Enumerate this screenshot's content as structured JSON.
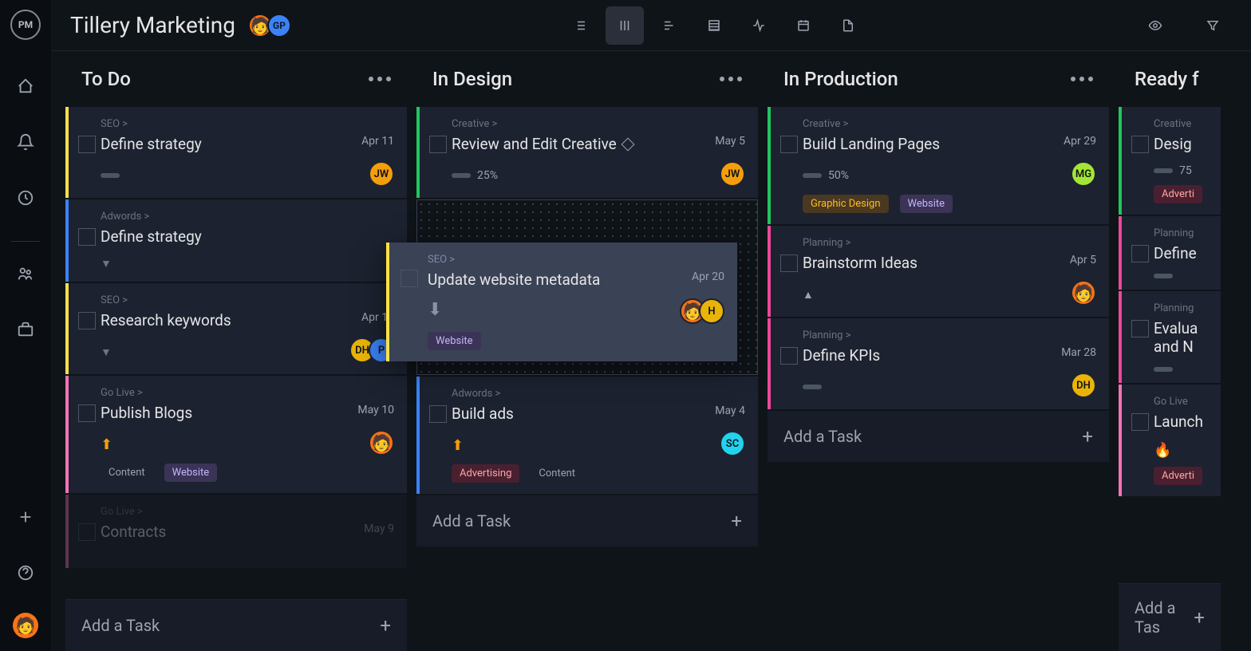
{
  "sidebar": {
    "logo": "PM"
  },
  "header": {
    "title": "Tillery Marketing",
    "avatars": [
      {
        "initials": "🧑",
        "bg": "#f97316",
        "emoji": true
      },
      {
        "initials": "GP",
        "bg": "#3b82f6"
      }
    ]
  },
  "columns": [
    {
      "title": "To Do",
      "addTask": "Add a Task",
      "addTaskBottom": true,
      "cards": [
        {
          "category": "SEO >",
          "title": "Define strategy",
          "date": "Apr 11",
          "border": "#fde047",
          "priority": "bar",
          "avatars": [
            {
              "initials": "JW",
              "bg": "#f59e0b"
            }
          ]
        },
        {
          "category": "Adwords >",
          "title": "Define strategy",
          "date": "",
          "border": "#3b82f6",
          "priority": "chevron-down"
        },
        {
          "category": "SEO >",
          "title": "Research keywords",
          "date": "Apr 13",
          "border": "#fde047",
          "priority": "chevron-down",
          "avatars": [
            {
              "initials": "DH",
              "bg": "#eab308"
            },
            {
              "initials": "P",
              "bg": "#3b82f6"
            }
          ]
        },
        {
          "category": "Go Live >",
          "title": "Publish Blogs",
          "date": "May 10",
          "border": "#f472b6",
          "priority": "arrow-up",
          "avatars": [
            {
              "initials": "🧑",
              "bg": "#f97316",
              "emoji": true
            }
          ],
          "tags": [
            {
              "text": "Content",
              "color": "#9ca3af",
              "bg": "transparent"
            },
            {
              "text": "Website",
              "color": "#c4b5fd",
              "bg": "#3b3456"
            }
          ]
        },
        {
          "category": "Go Live >",
          "title": "Contracts",
          "date": "May 9",
          "border": "#f472b6",
          "faded": true
        }
      ]
    },
    {
      "title": "In Design",
      "addTask": "Add a Task",
      "cards": [
        {
          "category": "Creative >",
          "title": "Review and Edit Creative",
          "date": "May 5",
          "border": "#22c55e",
          "milestone": true,
          "progress": "25%",
          "avatars": [
            {
              "initials": "JW",
              "bg": "#f59e0b"
            }
          ]
        },
        {
          "dropzone": true
        },
        {
          "category": "Adwords >",
          "title": "Build ads",
          "date": "May 4",
          "border": "#3b82f6",
          "priority": "arrow-up",
          "avatars": [
            {
              "initials": "SC",
              "bg": "#22d3ee"
            }
          ],
          "tags": [
            {
              "text": "Advertising",
              "color": "#fca5a5",
              "bg": "#4a2030"
            },
            {
              "text": "Content",
              "color": "#9ca3af",
              "bg": "transparent"
            }
          ]
        }
      ]
    },
    {
      "title": "In Production",
      "addTask": "Add a Task",
      "cards": [
        {
          "category": "Creative >",
          "title": "Build Landing Pages",
          "date": "Apr 29",
          "border": "#22c55e",
          "progress": "50%",
          "avatars": [
            {
              "initials": "MG",
              "bg": "#a3e635"
            }
          ],
          "tags": [
            {
              "text": "Graphic Design",
              "color": "#fbbf24",
              "bg": "#4a3820"
            },
            {
              "text": "Website",
              "color": "#c4b5fd",
              "bg": "#3b3456"
            }
          ]
        },
        {
          "category": "Planning >",
          "title": "Brainstorm Ideas",
          "date": "Apr 5",
          "border": "#ec4899",
          "priority": "chevron-up",
          "avatars": [
            {
              "initials": "🧑",
              "bg": "#f97316",
              "emoji": true
            }
          ]
        },
        {
          "category": "Planning >",
          "title": "Define KPIs",
          "date": "Mar 28",
          "border": "#ec4899",
          "priority": "bar",
          "avatars": [
            {
              "initials": "DH",
              "bg": "#eab308"
            }
          ]
        }
      ]
    },
    {
      "title": "Ready f",
      "addTask": "Add a Tas",
      "addTaskBottom": true,
      "narrow": true,
      "cards": [
        {
          "category": "Creative",
          "title": "Desig",
          "date": "",
          "border": "#22c55e",
          "progress": "75",
          "tags": [
            {
              "text": "Adverti",
              "color": "#fca5a5",
              "bg": "#4a2030"
            }
          ]
        },
        {
          "category": "Planning",
          "title": "Define",
          "date": "",
          "border": "#ec4899",
          "priority": "bar"
        },
        {
          "category": "Planning",
          "title": "Evalua and N",
          "date": "",
          "border": "#ec4899",
          "priority": "bar"
        },
        {
          "category": "Go Live",
          "title": "Launch",
          "date": "",
          "border": "#f472b6",
          "priority": "fire",
          "tags": [
            {
              "text": "Adverti",
              "color": "#fca5a5",
              "bg": "#4a2030"
            }
          ]
        }
      ]
    }
  ],
  "dragCard": {
    "category": "SEO >",
    "title": "Update website metadata",
    "date": "Apr 20",
    "border": "#fde047",
    "tags": [
      {
        "text": "Website",
        "color": "#c4b5fd",
        "bg": "#3b3456"
      }
    ],
    "avatars": [
      {
        "initials": "🧑",
        "bg": "#f97316",
        "emoji": true
      },
      {
        "initials": "H",
        "bg": "#eab308"
      }
    ]
  },
  "colors": {
    "bg": "#0f1419",
    "cardBg": "#1c2230",
    "text": "#e5e5e5",
    "muted": "#9ca3af"
  }
}
